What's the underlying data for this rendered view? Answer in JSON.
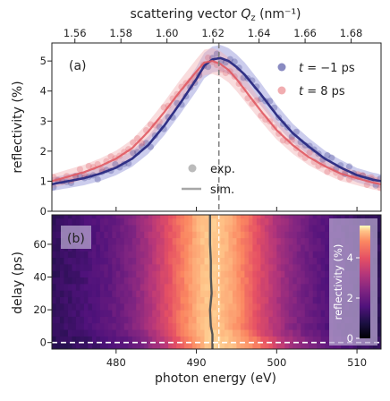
{
  "chart_data": [
    {
      "panel": "(a)",
      "type": "line",
      "top_axis": {
        "label": "scattering vector Q_z (nm⁻¹)",
        "label_main": "scattering vector ",
        "label_sym": "Q",
        "label_sub": "z",
        "label_unit": " (nm⁻¹)",
        "ticks": [
          "1.56",
          "1.58",
          "1.60",
          "1.62",
          "1.64",
          "1.66",
          "1.68"
        ],
        "range": [
          1.55,
          1.693
        ]
      },
      "xlabel": "photon energy (eV)",
      "ylabel": "reflectivity (%)",
      "xlim": [
        472,
        513
      ],
      "ylim": [
        0,
        5.6
      ],
      "yticks": [
        "0",
        "1",
        "2",
        "3",
        "4",
        "5"
      ],
      "marker_line_x": 492.8,
      "legend_series": [
        {
          "label": "t = −1 ps",
          "sym": "t",
          "value": " = −1 ps",
          "color": "#3b3c98"
        },
        {
          "label": "t = 8 ps",
          "sym": "t",
          "value": " = 8 ps",
          "color": "#e8777c"
        }
      ],
      "legend_type": [
        {
          "label": "exp.",
          "color": "#bbbbbb"
        },
        {
          "label": "sim.",
          "color": "#a7a7a7"
        }
      ],
      "series": [
        {
          "name": "t = −1 ps",
          "color": "#303085",
          "band_color": "#8f91d6",
          "x": [
            472,
            474,
            476,
            478,
            480,
            482,
            484,
            486,
            488,
            490,
            491,
            492,
            493,
            494,
            495,
            496,
            498,
            500,
            502,
            504,
            506,
            508,
            510,
            512,
            513
          ],
          "y": [
            0.9,
            1.0,
            1.1,
            1.25,
            1.45,
            1.75,
            2.2,
            2.85,
            3.6,
            4.4,
            4.85,
            5.05,
            5.1,
            5.0,
            4.8,
            4.55,
            3.9,
            3.2,
            2.6,
            2.15,
            1.75,
            1.45,
            1.2,
            1.05,
            1.0
          ]
        },
        {
          "name": "t = 8 ps",
          "color": "#e05a63",
          "band_color": "#f2b1b4",
          "x": [
            472,
            474,
            476,
            478,
            480,
            482,
            484,
            486,
            488,
            490,
            491,
            492,
            493,
            494,
            495,
            496,
            498,
            500,
            502,
            504,
            506,
            508,
            510,
            512,
            513
          ],
          "y": [
            1.0,
            1.15,
            1.3,
            1.5,
            1.75,
            2.1,
            2.65,
            3.3,
            4.0,
            4.65,
            4.95,
            5.0,
            4.9,
            4.7,
            4.4,
            4.05,
            3.35,
            2.7,
            2.2,
            1.8,
            1.5,
            1.25,
            1.1,
            0.95,
            0.9
          ]
        }
      ]
    },
    {
      "panel": "(b)",
      "type": "heatmap",
      "xlabel": "photon energy (eV)",
      "ylabel": "delay (ps)",
      "xlim": [
        472,
        513
      ],
      "ylim": [
        -4,
        78
      ],
      "xticks": [
        "480",
        "490",
        "500",
        "510"
      ],
      "yticks": [
        "0",
        "20",
        "40",
        "60"
      ],
      "colorbar": {
        "label": "reflectivity (%)",
        "ticks": [
          "0",
          "2",
          "4"
        ],
        "range": [
          0,
          5.6
        ]
      },
      "zero_delay_line": 0,
      "marker_line_x": 492.8,
      "sim_peak_line": {
        "delay": [
          -4,
          5,
          10,
          20,
          30,
          40,
          50,
          60,
          70,
          78
        ],
        "energy": [
          492.0,
          492.0,
          491.8,
          491.7,
          491.9,
          491.8,
          491.8,
          491.7,
          491.7,
          491.7
        ]
      }
    }
  ]
}
